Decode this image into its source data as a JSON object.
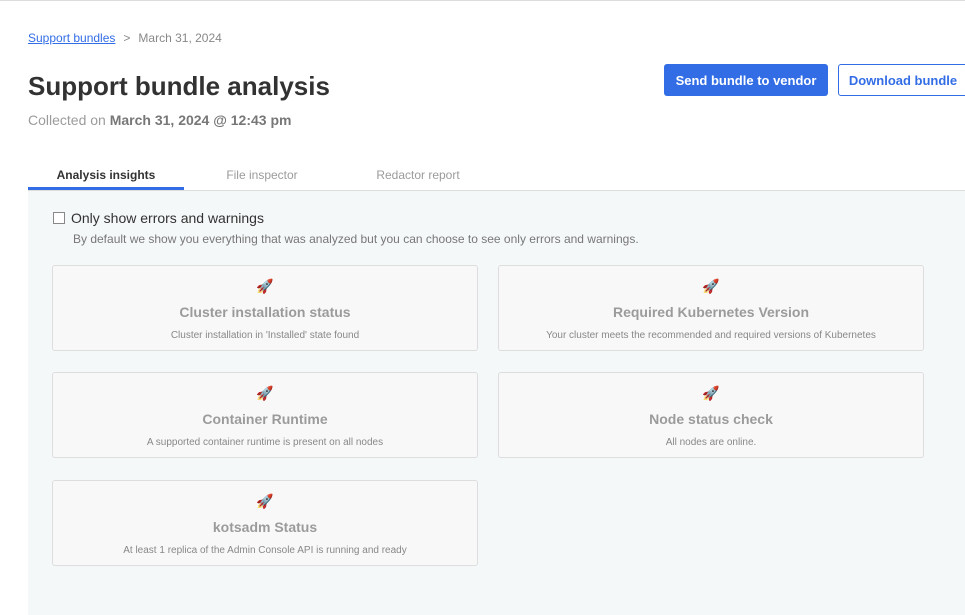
{
  "breadcrumb": {
    "link": "Support bundles",
    "sep": ">",
    "current": "March 31, 2024"
  },
  "title": "Support bundle analysis",
  "collected": {
    "label": "Collected on",
    "value": "March 31, 2024 @ 12:43 pm"
  },
  "buttons": {
    "send": "Send bundle to vendor",
    "download": "Download bundle"
  },
  "tabs": [
    "Analysis insights",
    "File inspector",
    "Redactor report"
  ],
  "filter": {
    "label": "Only show errors and warnings",
    "checked": false,
    "description": "By default we show you everything that was analyzed but you can choose to see only errors and warnings."
  },
  "insights": [
    {
      "icon": "rocket-icon",
      "title": "Cluster installation status",
      "desc": "Cluster installation in 'Installed' state found"
    },
    {
      "icon": "rocket-icon",
      "title": "Required Kubernetes Version",
      "desc": "Your cluster meets the recommended and required versions of Kubernetes"
    },
    {
      "icon": "rocket-icon",
      "title": "Container Runtime",
      "desc": "A supported container runtime is present on all nodes"
    },
    {
      "icon": "rocket-icon",
      "title": "Node status check",
      "desc": "All nodes are online."
    },
    {
      "icon": "rocket-icon",
      "title": "kotsadm Status",
      "desc": "At least 1 replica of the Admin Console API is running and ready"
    }
  ]
}
